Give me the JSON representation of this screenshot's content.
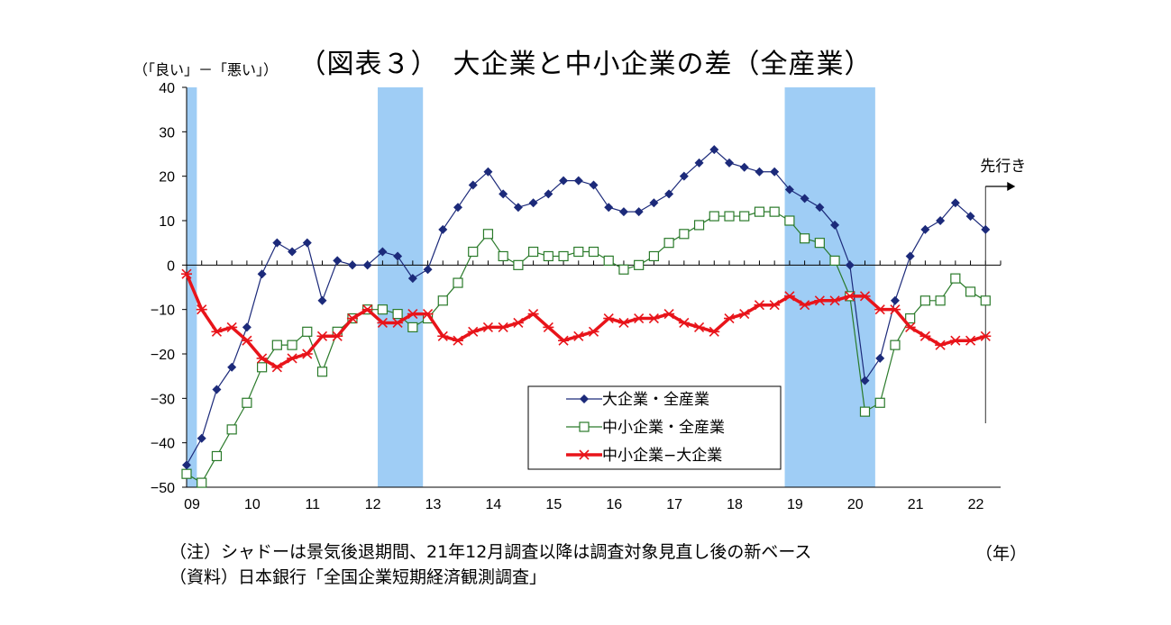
{
  "title": "（図表３）　大企業と中小企業の差（全産業）",
  "y_unit_label": "（「良い」－「悪い」）",
  "year_unit": "（年）",
  "future_label": "先行き",
  "notes": [
    "（注）シャドーは景気後退期間、21年12月調査以降は調査対象見直し後の新ベース",
    "（資料）日本銀行「全国企業短期経済観測調査」"
  ],
  "colors": {
    "large": "#1c2a7a",
    "small": "#2a7a2a",
    "diff": "#e8141a",
    "shade": "#9fcdf5"
  },
  "chart_data": {
    "type": "line",
    "title": "（図表３）　大企業と中小企業の差（全産業）",
    "ylabel": "（「良い」－「悪い」）",
    "xlabel": "（年）",
    "ylim": [
      -50,
      40
    ],
    "yticks": [
      40,
      30,
      20,
      10,
      0,
      -10,
      -20,
      -30,
      -40,
      -50
    ],
    "xlim": [
      2009.0,
      2022.5
    ],
    "x_tick_labels": [
      "09",
      "10",
      "11",
      "12",
      "13",
      "14",
      "15",
      "16",
      "17",
      "18",
      "19",
      "20",
      "21",
      "22"
    ],
    "x_tick_years": [
      2009,
      2010,
      2011,
      2012,
      2013,
      2014,
      2015,
      2016,
      2017,
      2018,
      2019,
      2020,
      2021,
      2022
    ],
    "shaded_periods": [
      [
        2009.0,
        2009.17
      ],
      [
        2012.17,
        2012.92
      ],
      [
        2018.92,
        2020.42
      ]
    ],
    "future_marker_x": 2022.25,
    "x": [
      2009.0,
      2009.25,
      2009.5,
      2009.75,
      2010.0,
      2010.25,
      2010.5,
      2010.75,
      2011.0,
      2011.25,
      2011.5,
      2011.75,
      2012.0,
      2012.25,
      2012.5,
      2012.75,
      2013.0,
      2013.25,
      2013.5,
      2013.75,
      2014.0,
      2014.25,
      2014.5,
      2014.75,
      2015.0,
      2015.25,
      2015.5,
      2015.75,
      2016.0,
      2016.25,
      2016.5,
      2016.75,
      2017.0,
      2017.25,
      2017.5,
      2017.75,
      2018.0,
      2018.25,
      2018.5,
      2018.75,
      2019.0,
      2019.25,
      2019.5,
      2019.75,
      2020.0,
      2020.25,
      2020.5,
      2020.75,
      2021.0,
      2021.25,
      2021.5,
      2021.75,
      2022.0,
      2022.25
    ],
    "series": [
      {
        "name": "大企業・全産業",
        "marker": "diamond",
        "values": [
          -45,
          -39,
          -28,
          -23,
          -14,
          -2,
          5,
          3,
          5,
          -8,
          1,
          0,
          0,
          3,
          2,
          -3,
          -1,
          8,
          13,
          18,
          21,
          16,
          13,
          14,
          16,
          19,
          19,
          18,
          13,
          12,
          12,
          14,
          16,
          20,
          23,
          26,
          23,
          22,
          21,
          21,
          17,
          15,
          13,
          9,
          0,
          -26,
          -21,
          -8,
          2,
          8,
          10,
          14,
          11,
          8
        ]
      },
      {
        "name": "中小企業・全産業",
        "marker": "square",
        "values": [
          -47,
          -49,
          -43,
          -37,
          -31,
          -23,
          -18,
          -18,
          -15,
          -24,
          -15,
          -12,
          -10,
          -10,
          -11,
          -14,
          -12,
          -8,
          -4,
          3,
          7,
          2,
          0,
          3,
          2,
          2,
          3,
          3,
          1,
          -1,
          0,
          2,
          5,
          7,
          9,
          11,
          11,
          11,
          12,
          12,
          10,
          6,
          5,
          1,
          -7,
          -33,
          -31,
          -18,
          -12,
          -8,
          -8,
          -3,
          -6,
          -8
        ]
      },
      {
        "name": "中小企業−大企業",
        "marker": "star",
        "values": [
          -2,
          -10,
          -15,
          -14,
          -17,
          -21,
          -23,
          -21,
          -20,
          -16,
          -16,
          -12,
          -10,
          -13,
          -13,
          -11,
          -11,
          -16,
          -17,
          -15,
          -14,
          -14,
          -13,
          -11,
          -14,
          -17,
          -16,
          -15,
          -12,
          -13,
          -12,
          -12,
          -11,
          -13,
          -14,
          -15,
          -12,
          -11,
          -9,
          -9,
          -7,
          -9,
          -8,
          -8,
          -7,
          -7,
          -10,
          -10,
          -14,
          -16,
          -18,
          -17,
          -17,
          -16
        ]
      }
    ],
    "legend_position": "bottom-center"
  }
}
